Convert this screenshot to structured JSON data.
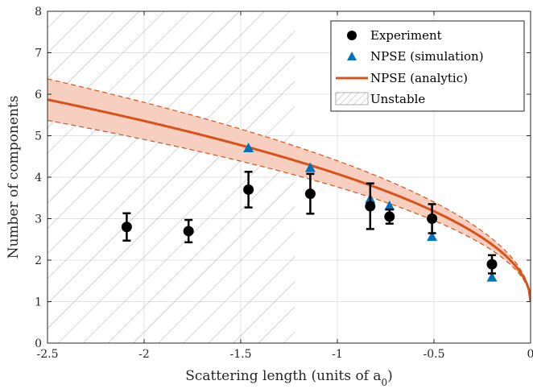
{
  "chart_data": {
    "type": "scatter",
    "xlabel": "Scattering length (units of a",
    "xlabel_subscript": "0",
    "xlabel_suffix": ")",
    "ylabel": "Number of components",
    "xlim": [
      -2.5,
      0
    ],
    "ylim": [
      0,
      8
    ],
    "xticks": [
      -2.5,
      -2,
      -1.5,
      -1,
      -0.5,
      0
    ],
    "xtick_labels": [
      "-2.5",
      "-2",
      "-1.5",
      "-1",
      "-0.5",
      "0"
    ],
    "yticks": [
      0,
      1,
      2,
      3,
      4,
      5,
      6,
      7,
      8
    ],
    "ytick_labels": [
      "0",
      "1",
      "2",
      "3",
      "4",
      "5",
      "6",
      "7",
      "8"
    ],
    "grid": true,
    "legend_position": "top-right",
    "unstable_region": {
      "x": [
        -2.5,
        -1.22
      ],
      "label": "Unstable"
    },
    "series": [
      {
        "name": "Experiment",
        "marker": "circle",
        "color": "#000000",
        "x": [
          -2.09,
          -1.77,
          -1.46,
          -1.14,
          -0.83,
          -0.73,
          -0.51,
          -0.2
        ],
        "y": [
          2.8,
          2.7,
          3.7,
          3.6,
          3.3,
          3.05,
          3.0,
          1.9
        ],
        "yerr": [
          0.33,
          0.27,
          0.43,
          0.48,
          0.55,
          0.17,
          0.35,
          0.22
        ]
      },
      {
        "name": "NPSE (simulation)",
        "marker": "triangle",
        "color": "#0072bd",
        "x": [
          -1.46,
          -1.14,
          -0.83,
          -0.73,
          -0.51,
          -0.2
        ],
        "y": [
          4.7,
          4.22,
          3.47,
          3.3,
          2.56,
          1.58
        ]
      },
      {
        "name": "NPSE (analytic)",
        "type": "line",
        "color": "#d95319",
        "band_fill": "#f6cfc1",
        "model": "N = 1 + 3.08 * sqrt(|a|), band ±0.5 near a=-2.5 tapering to 0 at a=0"
      }
    ],
    "legend": [
      "Experiment",
      "NPSE (simulation)",
      "NPSE (analytic)",
      "Unstable"
    ]
  }
}
